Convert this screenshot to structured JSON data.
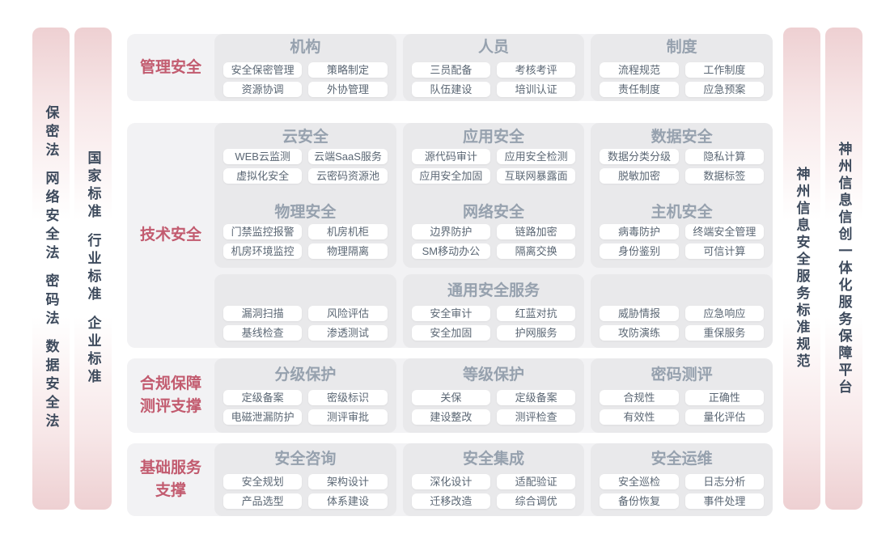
{
  "colors": {
    "section_label": "#c25b6f",
    "group_title": "#96a1ae",
    "chip_text": "#5b6774",
    "panel_bg": "#e9e9eb",
    "section_bg": "#f2f2f4",
    "sidebar_pink": "#eed0d2",
    "sidebar_text": "#3e4b5d"
  },
  "sidebars": {
    "left": [
      {
        "name": "laws",
        "words": [
          "保密法",
          "网络安全法",
          "密码法",
          "数据安全法"
        ]
      },
      {
        "name": "standards",
        "words": [
          "国家标准",
          "行业标准",
          "企业标准"
        ]
      }
    ],
    "right": [
      {
        "name": "service-standards",
        "words": [
          "神州信息安全服务标准规范"
        ]
      },
      {
        "name": "platform",
        "words": [
          "神州信息信创一体化服务保障平台"
        ]
      }
    ]
  },
  "sections": [
    {
      "label_lines": [
        "管理安全"
      ],
      "groups": [
        {
          "title": "机构",
          "buttons": [
            "安全保密管理",
            "策略制定",
            "资源协调",
            "外协管理"
          ]
        },
        {
          "title": "人员",
          "buttons": [
            "三员配备",
            "考核考评",
            "队伍建设",
            "培训认证"
          ]
        },
        {
          "title": "制度",
          "buttons": [
            "流程规范",
            "工作制度",
            "责任制度",
            "应急预案"
          ]
        }
      ]
    },
    {
      "label_lines": [
        "技术安全"
      ],
      "rows": [
        [
          {
            "title": "云安全",
            "buttons": [
              "WEB云监测",
              "云端SaaS服务",
              "虚拟化安全",
              "云密码资源池"
            ]
          },
          {
            "title": "应用安全",
            "buttons": [
              "源代码审计",
              "应用安全检测",
              "应用安全加固",
              "互联网暴露面"
            ]
          },
          {
            "title": "数据安全",
            "buttons": [
              "数据分类分级",
              "隐私计算",
              "脱敏加密",
              "数据标签"
            ]
          }
        ],
        [
          {
            "title": "物理安全",
            "buttons": [
              "门禁监控报警",
              "机房机柜",
              "机房环境监控",
              "物理隔离"
            ]
          },
          {
            "title": "网络安全",
            "buttons": [
              "边界防护",
              "链路加密",
              "SM移动办公",
              "隔离交换"
            ]
          },
          {
            "title": "主机安全",
            "buttons": [
              "病毒防护",
              "终端安全管理",
              "身份鉴别",
              "可信计算"
            ]
          }
        ],
        [
          {
            "title": "",
            "buttons": [
              "漏洞扫描",
              "风险评估",
              "基线检查",
              "渗透测试"
            ]
          },
          {
            "title": "通用安全服务",
            "buttons": [
              "安全审计",
              "红蓝对抗",
              "安全加固",
              "护网服务"
            ]
          },
          {
            "title": "",
            "buttons": [
              "威胁情报",
              "应急响应",
              "攻防演练",
              "重保服务"
            ]
          }
        ]
      ]
    },
    {
      "label_lines": [
        "合规保障",
        "测评支撑"
      ],
      "groups": [
        {
          "title": "分级保护",
          "buttons": [
            "定级备案",
            "密级标识",
            "电磁泄漏防护",
            "测评审批"
          ]
        },
        {
          "title": "等级保护",
          "buttons": [
            "关保",
            "定级备案",
            "建设整改",
            "测评检查"
          ]
        },
        {
          "title": "密码测评",
          "buttons": [
            "合规性",
            "正确性",
            "有效性",
            "量化评估"
          ]
        }
      ]
    },
    {
      "label_lines": [
        "基础服务",
        "支撑"
      ],
      "groups": [
        {
          "title": "安全咨询",
          "buttons": [
            "安全规划",
            "架构设计",
            "产品选型",
            "体系建设"
          ]
        },
        {
          "title": "安全集成",
          "buttons": [
            "深化设计",
            "适配验证",
            "迁移改造",
            "综合调优"
          ]
        },
        {
          "title": "安全运维",
          "buttons": [
            "安全巡检",
            "日志分析",
            "备份恢复",
            "事件处理"
          ]
        }
      ]
    }
  ]
}
